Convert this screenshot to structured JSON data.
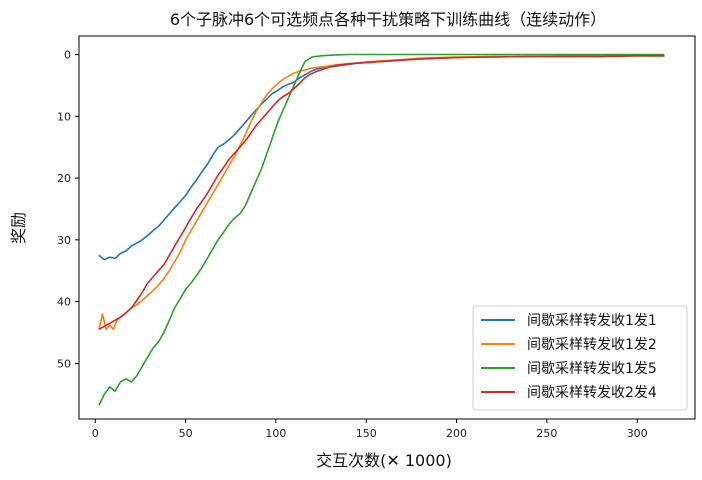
{
  "chart_data": {
    "type": "line",
    "title": "6个子脉冲6个可选频点各种干扰策略下训练曲线（连续动作）",
    "xlabel": "交互次数(✕ 1000)",
    "ylabel": "奖励",
    "xlim": [
      -9,
      332
    ],
    "ylim": [
      59,
      -3
    ],
    "y_inverted": true,
    "xticks": [
      0,
      50,
      100,
      150,
      200,
      250,
      300
    ],
    "yticks": [
      0,
      10,
      20,
      30,
      40,
      50
    ],
    "grid": false,
    "legend_position": "lower-right",
    "series": [
      {
        "name": "间歇采样转发收1发1",
        "color": "#1f77b4",
        "points": [
          [
            2,
            32.5
          ],
          [
            5,
            33.2
          ],
          [
            8,
            32.8
          ],
          [
            11,
            33
          ],
          [
            14,
            32.2
          ],
          [
            17,
            31.8
          ],
          [
            20,
            31
          ],
          [
            23,
            30.5
          ],
          [
            26,
            30
          ],
          [
            29,
            29.3
          ],
          [
            32,
            28.5
          ],
          [
            35,
            27.8
          ],
          [
            38,
            26.8
          ],
          [
            41,
            25.8
          ],
          [
            44,
            24.8
          ],
          [
            47,
            23.8
          ],
          [
            50,
            22.8
          ],
          [
            53,
            21.5
          ],
          [
            56,
            20.3
          ],
          [
            59,
            19
          ],
          [
            62,
            17.8
          ],
          [
            65,
            16.3
          ],
          [
            68,
            15
          ],
          [
            71,
            14.5
          ],
          [
            74,
            13.8
          ],
          [
            77,
            13
          ],
          [
            80,
            12
          ],
          [
            83,
            11
          ],
          [
            86,
            10
          ],
          [
            89,
            9
          ],
          [
            92,
            8
          ],
          [
            95,
            7.2
          ],
          [
            98,
            6.3
          ],
          [
            101,
            5.8
          ],
          [
            104,
            5.2
          ],
          [
            107,
            4.8
          ],
          [
            110,
            4.5
          ],
          [
            113,
            3.8
          ],
          [
            116,
            3.3
          ],
          [
            119,
            2.8
          ],
          [
            122,
            2.4
          ],
          [
            125,
            2.2
          ],
          [
            130,
            2
          ],
          [
            135,
            1.8
          ],
          [
            140,
            1.6
          ],
          [
            145,
            1.4
          ],
          [
            150,
            1.3
          ],
          [
            160,
            1.1
          ],
          [
            170,
            0.9
          ],
          [
            180,
            0.7
          ],
          [
            190,
            0.6
          ],
          [
            200,
            0.5
          ],
          [
            210,
            0.4
          ],
          [
            220,
            0.4
          ],
          [
            240,
            0.3
          ],
          [
            260,
            0.3
          ],
          [
            280,
            0.3
          ],
          [
            300,
            0.2
          ],
          [
            315,
            0.2
          ]
        ]
      },
      {
        "name": "间歇采样转发收1发2",
        "color": "#ff7f0e",
        "points": [
          [
            2,
            44.5
          ],
          [
            4,
            42
          ],
          [
            6,
            44.5
          ],
          [
            8,
            43.8
          ],
          [
            10,
            44.5
          ],
          [
            12,
            43
          ],
          [
            14,
            42.5
          ],
          [
            17,
            41.8
          ],
          [
            20,
            41
          ],
          [
            23,
            40.5
          ],
          [
            26,
            39.8
          ],
          [
            29,
            39
          ],
          [
            32,
            38.2
          ],
          [
            35,
            37.3
          ],
          [
            38,
            36.3
          ],
          [
            41,
            35
          ],
          [
            44,
            33.5
          ],
          [
            47,
            32
          ],
          [
            50,
            30
          ],
          [
            53,
            28.5
          ],
          [
            56,
            27
          ],
          [
            59,
            25.5
          ],
          [
            62,
            24
          ],
          [
            65,
            22.5
          ],
          [
            68,
            21
          ],
          [
            71,
            19.5
          ],
          [
            74,
            18
          ],
          [
            77,
            16.5
          ],
          [
            80,
            14.8
          ],
          [
            83,
            13
          ],
          [
            86,
            11
          ],
          [
            89,
            9.3
          ],
          [
            92,
            7.8
          ],
          [
            95,
            6.5
          ],
          [
            98,
            5.5
          ],
          [
            101,
            4.7
          ],
          [
            104,
            4
          ],
          [
            107,
            3.5
          ],
          [
            110,
            3
          ],
          [
            113,
            2.7
          ],
          [
            116,
            2.5
          ],
          [
            120,
            2.2
          ],
          [
            125,
            2
          ],
          [
            130,
            1.8
          ],
          [
            135,
            1.6
          ],
          [
            140,
            1.5
          ],
          [
            150,
            1.2
          ],
          [
            160,
            1
          ],
          [
            170,
            0.8
          ],
          [
            180,
            0.6
          ],
          [
            190,
            0.5
          ],
          [
            200,
            0.4
          ],
          [
            220,
            0.3
          ],
          [
            240,
            0.3
          ],
          [
            260,
            0.2
          ],
          [
            280,
            0.2
          ],
          [
            300,
            0.2
          ],
          [
            315,
            0.2
          ]
        ]
      },
      {
        "name": "间歇采样转发收1发5",
        "color": "#2ca02c",
        "points": [
          [
            2,
            56.8
          ],
          [
            5,
            55
          ],
          [
            8,
            53.8
          ],
          [
            11,
            54.5
          ],
          [
            14,
            53
          ],
          [
            17,
            52.5
          ],
          [
            20,
            53
          ],
          [
            23,
            52
          ],
          [
            26,
            50.5
          ],
          [
            29,
            49
          ],
          [
            32,
            47.5
          ],
          [
            35,
            46.5
          ],
          [
            38,
            45
          ],
          [
            41,
            43
          ],
          [
            44,
            41
          ],
          [
            47,
            39.5
          ],
          [
            50,
            38
          ],
          [
            53,
            37
          ],
          [
            56,
            35.8
          ],
          [
            59,
            34.5
          ],
          [
            62,
            33
          ],
          [
            65,
            31.5
          ],
          [
            68,
            30
          ],
          [
            71,
            28.8
          ],
          [
            74,
            27.5
          ],
          [
            77,
            26.5
          ],
          [
            80,
            25.8
          ],
          [
            83,
            24.5
          ],
          [
            86,
            22.5
          ],
          [
            89,
            20.5
          ],
          [
            92,
            18.5
          ],
          [
            95,
            16
          ],
          [
            98,
            13.5
          ],
          [
            101,
            11
          ],
          [
            104,
            9
          ],
          [
            107,
            7
          ],
          [
            110,
            5
          ],
          [
            113,
            3
          ],
          [
            116,
            1.2
          ],
          [
            120,
            0.4
          ],
          [
            125,
            0.2
          ],
          [
            130,
            0.1
          ],
          [
            140,
            0
          ],
          [
            150,
            0
          ],
          [
            170,
            0
          ],
          [
            200,
            0
          ],
          [
            230,
            0
          ],
          [
            260,
            0
          ],
          [
            290,
            0
          ],
          [
            315,
            0
          ]
        ]
      },
      {
        "name": "间歇采样转发收2发4",
        "color": "#d62728",
        "points": [
          [
            2,
            44.5
          ],
          [
            5,
            44
          ],
          [
            8,
            43.5
          ],
          [
            11,
            43
          ],
          [
            14,
            42.5
          ],
          [
            17,
            41.8
          ],
          [
            20,
            41
          ],
          [
            23,
            39.8
          ],
          [
            26,
            38.5
          ],
          [
            29,
            37
          ],
          [
            32,
            36
          ],
          [
            35,
            35
          ],
          [
            38,
            34
          ],
          [
            41,
            32.5
          ],
          [
            44,
            31
          ],
          [
            47,
            29.5
          ],
          [
            50,
            28
          ],
          [
            53,
            26.5
          ],
          [
            56,
            25
          ],
          [
            59,
            23.8
          ],
          [
            62,
            22.5
          ],
          [
            65,
            21
          ],
          [
            68,
            19.5
          ],
          [
            71,
            18.3
          ],
          [
            74,
            17
          ],
          [
            77,
            16
          ],
          [
            80,
            15
          ],
          [
            83,
            14
          ],
          [
            86,
            12.8
          ],
          [
            89,
            11.5
          ],
          [
            92,
            10.5
          ],
          [
            95,
            9.5
          ],
          [
            98,
            8.5
          ],
          [
            101,
            7.5
          ],
          [
            104,
            6.8
          ],
          [
            107,
            6.3
          ],
          [
            110,
            5.5
          ],
          [
            113,
            4.7
          ],
          [
            116,
            3.8
          ],
          [
            119,
            3.2
          ],
          [
            122,
            2.8
          ],
          [
            126,
            2.4
          ],
          [
            130,
            2
          ],
          [
            135,
            1.7
          ],
          [
            140,
            1.5
          ],
          [
            150,
            1.3
          ],
          [
            160,
            1.1
          ],
          [
            170,
            0.9
          ],
          [
            180,
            0.7
          ],
          [
            190,
            0.6
          ],
          [
            200,
            0.5
          ],
          [
            220,
            0.4
          ],
          [
            240,
            0.3
          ],
          [
            260,
            0.3
          ],
          [
            280,
            0.3
          ],
          [
            300,
            0.2
          ],
          [
            315,
            0.2
          ]
        ]
      }
    ]
  }
}
